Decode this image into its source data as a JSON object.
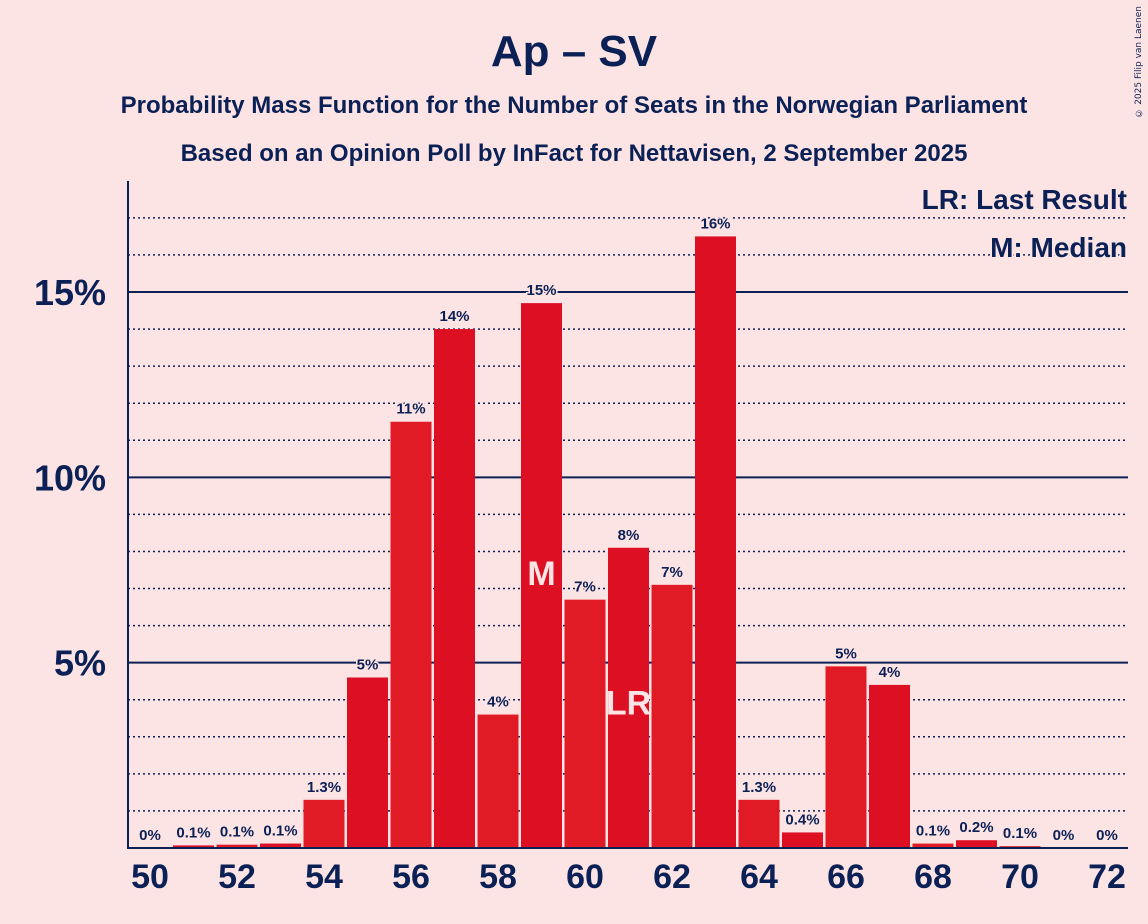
{
  "copyright": "© 2025 Filip van Laenen",
  "chart_data": {
    "type": "bar",
    "title": "Ap – SV",
    "subtitle": "Probability Mass Function for the Number of Seats in the Norwegian Parliament",
    "subtitle2": "Based on an Opinion Poll by InFact for Nettavisen, 2 September 2025",
    "xlabel": "",
    "ylabel": "",
    "categories": [
      50,
      51,
      52,
      53,
      54,
      55,
      56,
      57,
      58,
      59,
      60,
      61,
      62,
      63,
      64,
      65,
      66,
      67,
      68,
      69,
      70,
      71,
      72
    ],
    "values": [
      0,
      0.07,
      0.09,
      0.12,
      1.3,
      4.6,
      11.5,
      14.0,
      3.6,
      14.7,
      6.7,
      8.1,
      7.1,
      16.5,
      1.3,
      0.42,
      4.9,
      4.4,
      0.12,
      0.21,
      0.05,
      0,
      0
    ],
    "labels": [
      "0%",
      "0.1%",
      "0.1%",
      "0.1%",
      "1.3%",
      "5%",
      "11%",
      "14%",
      "4%",
      "15%",
      "7%",
      "8%",
      "7%",
      "16%",
      "1.3%",
      "0.4%",
      "5%",
      "4%",
      "0.1%",
      "0.2%",
      "0.1%",
      "0%",
      "0%"
    ],
    "xticks": [
      "50",
      "52",
      "54",
      "56",
      "58",
      "60",
      "62",
      "64",
      "66",
      "68",
      "70",
      "72"
    ],
    "yticks": [
      "5%",
      "10%",
      "15%"
    ],
    "ylim": [
      0,
      18
    ],
    "median_seat": 59,
    "last_result_seat": 61,
    "median_marker": "M",
    "last_result_marker": "LR",
    "legend": [
      "LR: Last Result",
      "M: Median"
    ],
    "legend_position": "top-right",
    "colors": {
      "bar_dark": "#dc0f23",
      "bar_light": "#e11b25",
      "text": "#0b2156",
      "background": "#fde4e4",
      "label_on_bar": "#fde4e4"
    }
  }
}
